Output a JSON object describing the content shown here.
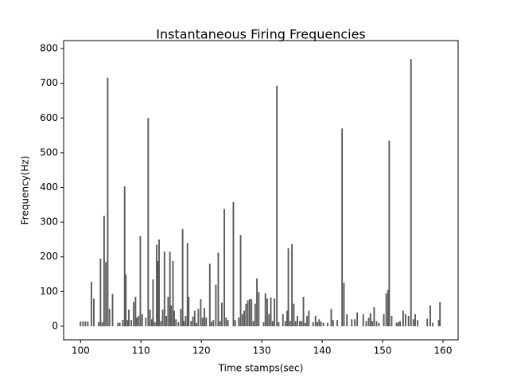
{
  "chart_data": {
    "type": "bar",
    "title": "Instantaneous Firing Frequencies",
    "xlabel": "Time stamps(sec)",
    "ylabel": "Frequency(Hz)",
    "color": "#5a5a5a",
    "x": [
      100.0,
      100.4,
      100.8,
      101.2,
      101.8,
      102.2,
      103.0,
      103.3,
      103.6,
      103.9,
      104.2,
      104.5,
      104.8,
      105.3,
      106.2,
      106.5,
      107.0,
      107.3,
      107.5,
      107.8,
      108.0,
      108.4,
      108.8,
      109.1,
      109.3,
      109.6,
      109.9,
      110.2,
      110.8,
      111.2,
      111.5,
      111.8,
      112.0,
      112.3,
      112.6,
      112.8,
      113.0,
      113.3,
      113.6,
      113.9,
      114.2,
      114.5,
      114.8,
      115.0,
      115.3,
      115.5,
      115.8,
      116.2,
      116.6,
      116.9,
      117.1,
      117.4,
      117.7,
      117.9,
      118.3,
      118.6,
      118.9,
      119.2,
      119.5,
      119.9,
      120.2,
      120.5,
      120.8,
      121.4,
      121.7,
      122.0,
      122.4,
      122.8,
      123.1,
      123.4,
      123.8,
      124.1,
      124.4,
      125.3,
      125.6,
      126.2,
      126.5,
      126.8,
      127.1,
      127.4,
      127.7,
      128.0,
      128.3,
      128.6,
      128.9,
      129.2,
      129.5,
      130.3,
      130.6,
      130.9,
      131.2,
      131.5,
      131.8,
      132.1,
      132.5,
      132.8,
      133.5,
      133.9,
      134.2,
      134.4,
      134.7,
      135.0,
      135.3,
      135.6,
      135.9,
      136.3,
      136.6,
      136.9,
      137.2,
      137.5,
      137.8,
      138.5,
      138.9,
      139.2,
      139.5,
      139.8,
      140.2,
      140.9,
      141.5,
      141.8,
      142.5,
      143.3,
      143.6,
      144.1,
      144.9,
      145.4,
      145.8,
      146.8,
      147.3,
      147.7,
      148.0,
      148.3,
      148.6,
      149.0,
      149.4,
      150.2,
      150.6,
      150.9,
      151.1,
      151.5,
      152.3,
      152.6,
      152.9,
      153.4,
      153.8,
      154.3,
      154.7,
      155.1,
      155.4,
      155.8,
      157.4,
      157.9,
      158.3,
      159.3,
      159.5
    ],
    "values": [
      14,
      14,
      14,
      14,
      128,
      80,
      12,
      195,
      12,
      318,
      185,
      716,
      50,
      93,
      10,
      10,
      18,
      403,
      150,
      18,
      48,
      18,
      70,
      85,
      25,
      30,
      260,
      35,
      25,
      600,
      48,
      20,
      135,
      12,
      235,
      188,
      250,
      15,
      48,
      215,
      30,
      85,
      215,
      60,
      188,
      45,
      20,
      12,
      50,
      280,
      15,
      30,
      240,
      85,
      15,
      28,
      45,
      10,
      50,
      78,
      25,
      53,
      25,
      180,
      13,
      18,
      120,
      212,
      15,
      68,
      338,
      25,
      18,
      358,
      18,
      25,
      263,
      35,
      45,
      65,
      75,
      78,
      78,
      15,
      65,
      138,
      98,
      12,
      95,
      80,
      35,
      83,
      15,
      80,
      693,
      12,
      35,
      15,
      45,
      225,
      15,
      237,
      65,
      15,
      30,
      15,
      15,
      85,
      10,
      30,
      45,
      12,
      30,
      12,
      20,
      14,
      10,
      10,
      50,
      18,
      18,
      570,
      125,
      35,
      20,
      20,
      40,
      35,
      15,
      25,
      38,
      15,
      55,
      15,
      10,
      35,
      95,
      105,
      535,
      30,
      10,
      12,
      15,
      45,
      35,
      30,
      770,
      20,
      35,
      18,
      22,
      60,
      10,
      18,
      70
    ],
    "xlim": [
      97.2,
      162.5
    ],
    "ylim": [
      -39,
      823
    ],
    "xticks": [
      100,
      110,
      120,
      130,
      140,
      150,
      160
    ],
    "yticks": [
      0,
      100,
      200,
      300,
      400,
      500,
      600,
      700,
      800
    ]
  }
}
